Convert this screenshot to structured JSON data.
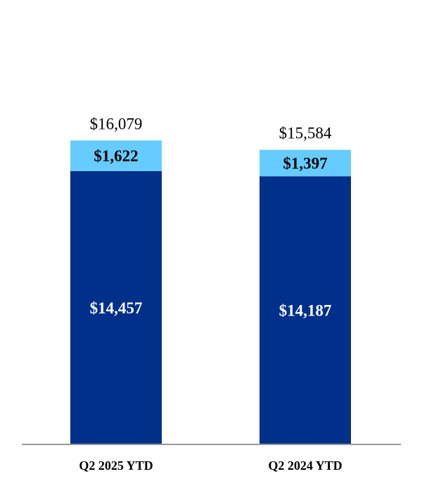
{
  "chart_data": {
    "type": "bar",
    "stacked": true,
    "categories": [
      "Q2 2025 YTD",
      "Q2 2024 YTD"
    ],
    "series": [
      {
        "values": [
          14457,
          14187
        ],
        "labels": [
          "$14,457",
          "$14,187"
        ],
        "color": "#00308A",
        "label_color": "#FFFFFF"
      },
      {
        "values": [
          1622,
          1397
        ],
        "labels": [
          "$1,622",
          "$1,397"
        ],
        "color": "#66CCFF",
        "label_color": "#000000"
      }
    ],
    "totals": [
      16079,
      15584
    ],
    "total_labels": [
      "$16,079",
      "$15,584"
    ],
    "ylim": [
      0,
      30000
    ],
    "grid": false,
    "legend": "none",
    "axis_color": "#999999"
  }
}
